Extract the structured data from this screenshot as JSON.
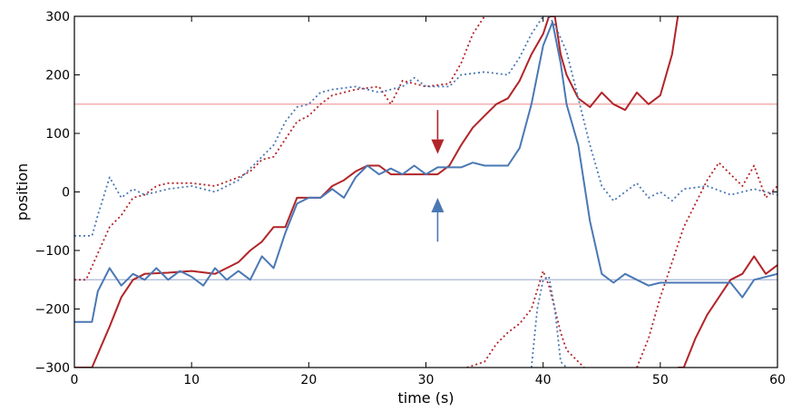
{
  "chart_data": {
    "type": "line",
    "title": "",
    "xlabel": "time (s)",
    "ylabel": "position",
    "xlim": [
      0,
      60
    ],
    "ylim": [
      -300,
      300
    ],
    "xticks": [
      0,
      10,
      20,
      30,
      40,
      50,
      60
    ],
    "yticks": [
      -300,
      -200,
      -100,
      0,
      100,
      200,
      300
    ],
    "xtick_labels": [
      "0",
      "10",
      "20",
      "30",
      "40",
      "50",
      "60"
    ],
    "ytick_labels": [
      "−300",
      "−200",
      "−100",
      "0",
      "100",
      "200",
      "300"
    ],
    "grid": false,
    "legend": "none",
    "reference_lines": [
      {
        "y": 150,
        "color": "#f0a0a0"
      },
      {
        "y": -150,
        "color": "#a9b7d6"
      }
    ],
    "arrows": [
      {
        "x": 31,
        "y_from": 140,
        "y_to": 65,
        "color": "#b22428",
        "direction": "down"
      },
      {
        "x": 31,
        "y_from": -85,
        "y_to": -10,
        "color": "#4a78b4",
        "direction": "up"
      }
    ],
    "series": [
      {
        "color": "#b22428",
        "style": "solid",
        "points": [
          [
            0,
            -300
          ],
          [
            1.5,
            -300
          ],
          [
            3,
            -230
          ],
          [
            4,
            -180
          ],
          [
            5,
            -150
          ],
          [
            6,
            -140
          ],
          [
            8,
            -138
          ],
          [
            10,
            -135
          ],
          [
            12,
            -140
          ],
          [
            13,
            -130
          ],
          [
            14,
            -120
          ],
          [
            15,
            -100
          ],
          [
            16,
            -85
          ],
          [
            17,
            -60
          ],
          [
            18,
            -60
          ],
          [
            19,
            -10
          ],
          [
            20,
            -10
          ],
          [
            21,
            -10
          ],
          [
            22,
            10
          ],
          [
            23,
            20
          ],
          [
            24,
            35
          ],
          [
            25,
            45
          ],
          [
            26,
            45
          ],
          [
            27,
            30
          ],
          [
            29,
            30
          ],
          [
            30,
            30
          ],
          [
            31,
            30
          ],
          [
            32,
            45
          ],
          [
            33,
            80
          ],
          [
            34,
            110
          ],
          [
            35,
            130
          ],
          [
            36,
            150
          ],
          [
            37,
            160
          ],
          [
            38,
            190
          ],
          [
            39,
            235
          ],
          [
            40,
            270
          ],
          [
            40.5,
            300
          ],
          [
            41,
            300
          ],
          [
            41.5,
            235
          ],
          [
            42,
            200
          ],
          [
            43,
            160
          ],
          [
            44,
            145
          ],
          [
            45,
            170
          ],
          [
            46,
            150
          ],
          [
            47,
            140
          ],
          [
            48,
            170
          ],
          [
            49,
            150
          ],
          [
            50,
            165
          ],
          [
            51,
            235
          ],
          [
            51.5,
            300
          ]
        ]
      },
      {
        "color": "#b22428",
        "style": "solid",
        "points": [
          [
            51.5,
            -300
          ],
          [
            52,
            -300
          ],
          [
            53,
            -250
          ],
          [
            54,
            -210
          ],
          [
            55,
            -180
          ],
          [
            56,
            -150
          ],
          [
            57,
            -140
          ],
          [
            58,
            -110
          ],
          [
            59,
            -140
          ],
          [
            60,
            -125
          ]
        ]
      },
      {
        "color": "#4a78b4",
        "style": "solid",
        "points": [
          [
            0,
            -222
          ],
          [
            1.5,
            -222
          ],
          [
            2,
            -170
          ],
          [
            3,
            -130
          ],
          [
            4,
            -160
          ],
          [
            5,
            -140
          ],
          [
            6,
            -150
          ],
          [
            7,
            -130
          ],
          [
            8,
            -150
          ],
          [
            9,
            -135
          ],
          [
            10,
            -145
          ],
          [
            11,
            -160
          ],
          [
            12,
            -130
          ],
          [
            13,
            -150
          ],
          [
            14,
            -135
          ],
          [
            15,
            -150
          ],
          [
            16,
            -110
          ],
          [
            17,
            -130
          ],
          [
            18,
            -70
          ],
          [
            19,
            -20
          ],
          [
            20,
            -10
          ],
          [
            21,
            -10
          ],
          [
            22,
            5
          ],
          [
            23,
            -10
          ],
          [
            24,
            25
          ],
          [
            25,
            45
          ],
          [
            26,
            30
          ],
          [
            27,
            40
          ],
          [
            28,
            30
          ],
          [
            29,
            45
          ],
          [
            30,
            30
          ],
          [
            31,
            42
          ],
          [
            33,
            42
          ],
          [
            34,
            50
          ],
          [
            35,
            45
          ],
          [
            37,
            45
          ],
          [
            38,
            75
          ],
          [
            39,
            150
          ],
          [
            40,
            250
          ],
          [
            40.8,
            290
          ],
          [
            41.5,
            220
          ],
          [
            42,
            150
          ],
          [
            43,
            80
          ],
          [
            44,
            -50
          ],
          [
            45,
            -140
          ],
          [
            46,
            -155
          ],
          [
            47,
            -140
          ],
          [
            48,
            -150
          ],
          [
            49,
            -160
          ],
          [
            50,
            -155
          ],
          [
            51,
            -155
          ],
          [
            56,
            -155
          ],
          [
            57,
            -180
          ],
          [
            58,
            -150
          ],
          [
            60,
            -140
          ]
        ]
      },
      {
        "color": "#b22428",
        "style": "dotted",
        "points": [
          [
            0,
            -150
          ],
          [
            1,
            -150
          ],
          [
            2,
            -105
          ],
          [
            3,
            -60
          ],
          [
            4,
            -40
          ],
          [
            5,
            -10
          ],
          [
            6,
            -5
          ],
          [
            7,
            10
          ],
          [
            8,
            15
          ],
          [
            10,
            15
          ],
          [
            12,
            10
          ],
          [
            14,
            25
          ],
          [
            15,
            35
          ],
          [
            16,
            55
          ],
          [
            17,
            60
          ],
          [
            18,
            90
          ],
          [
            19,
            120
          ],
          [
            20,
            130
          ],
          [
            21,
            150
          ],
          [
            22,
            165
          ],
          [
            24,
            175
          ],
          [
            26,
            180
          ],
          [
            27,
            150
          ],
          [
            28,
            190
          ],
          [
            30,
            180
          ],
          [
            32,
            185
          ],
          [
            33,
            220
          ],
          [
            34,
            270
          ],
          [
            35,
            300
          ]
        ]
      },
      {
        "color": "#b22428",
        "style": "dotted",
        "points": [
          [
            33.5,
            -300
          ],
          [
            35,
            -290
          ],
          [
            36,
            -260
          ],
          [
            37,
            -240
          ],
          [
            38,
            -225
          ],
          [
            39,
            -200
          ],
          [
            40,
            -135
          ],
          [
            40.5,
            -160
          ],
          [
            41,
            -200
          ],
          [
            41.5,
            -240
          ],
          [
            42,
            -270
          ],
          [
            43,
            -290
          ],
          [
            43.5,
            -300
          ]
        ]
      },
      {
        "color": "#b22428",
        "style": "dotted",
        "points": [
          [
            48,
            -300
          ],
          [
            49,
            -250
          ],
          [
            50,
            -180
          ],
          [
            51,
            -120
          ],
          [
            52,
            -60
          ],
          [
            53,
            -20
          ],
          [
            54,
            20
          ],
          [
            55,
            50
          ],
          [
            56,
            30
          ],
          [
            57,
            10
          ],
          [
            58,
            45
          ],
          [
            59,
            -10
          ],
          [
            60,
            10
          ]
        ]
      },
      {
        "color": "#4a78b4",
        "style": "dotted",
        "points": [
          [
            0,
            -75
          ],
          [
            1.5,
            -75
          ],
          [
            2,
            -40
          ],
          [
            3,
            25
          ],
          [
            4,
            -10
          ],
          [
            5,
            5
          ],
          [
            6,
            -5
          ],
          [
            8,
            5
          ],
          [
            10,
            10
          ],
          [
            12,
            0
          ],
          [
            14,
            20
          ],
          [
            15,
            40
          ],
          [
            16,
            60
          ],
          [
            17,
            80
          ],
          [
            18,
            120
          ],
          [
            19,
            145
          ],
          [
            20,
            150
          ],
          [
            21,
            170
          ],
          [
            22,
            175
          ],
          [
            24,
            180
          ],
          [
            26,
            170
          ],
          [
            28,
            180
          ],
          [
            29,
            195
          ],
          [
            30,
            180
          ],
          [
            32,
            180
          ],
          [
            33,
            200
          ],
          [
            35,
            205
          ],
          [
            37,
            200
          ],
          [
            38,
            230
          ],
          [
            39,
            270
          ],
          [
            40,
            300
          ]
        ]
      },
      {
        "color": "#4a78b4",
        "style": "dotted",
        "points": [
          [
            40.5,
            300
          ],
          [
            41,
            285
          ],
          [
            42,
            240
          ],
          [
            43,
            160
          ],
          [
            44,
            80
          ],
          [
            45,
            10
          ],
          [
            46,
            -15
          ],
          [
            47,
            0
          ],
          [
            48,
            15
          ],
          [
            49,
            -10
          ],
          [
            50,
            0
          ],
          [
            51,
            -15
          ],
          [
            52,
            5
          ],
          [
            54,
            10
          ],
          [
            56,
            -5
          ],
          [
            58,
            5
          ],
          [
            60,
            -5
          ]
        ]
      },
      {
        "color": "#4a78b4",
        "style": "dotted",
        "points": [
          [
            39,
            -300
          ],
          [
            39.5,
            -200
          ],
          [
            40,
            -150
          ],
          [
            40.5,
            -145
          ],
          [
            41,
            -200
          ],
          [
            41.5,
            -290
          ],
          [
            42,
            -300
          ]
        ]
      }
    ]
  }
}
